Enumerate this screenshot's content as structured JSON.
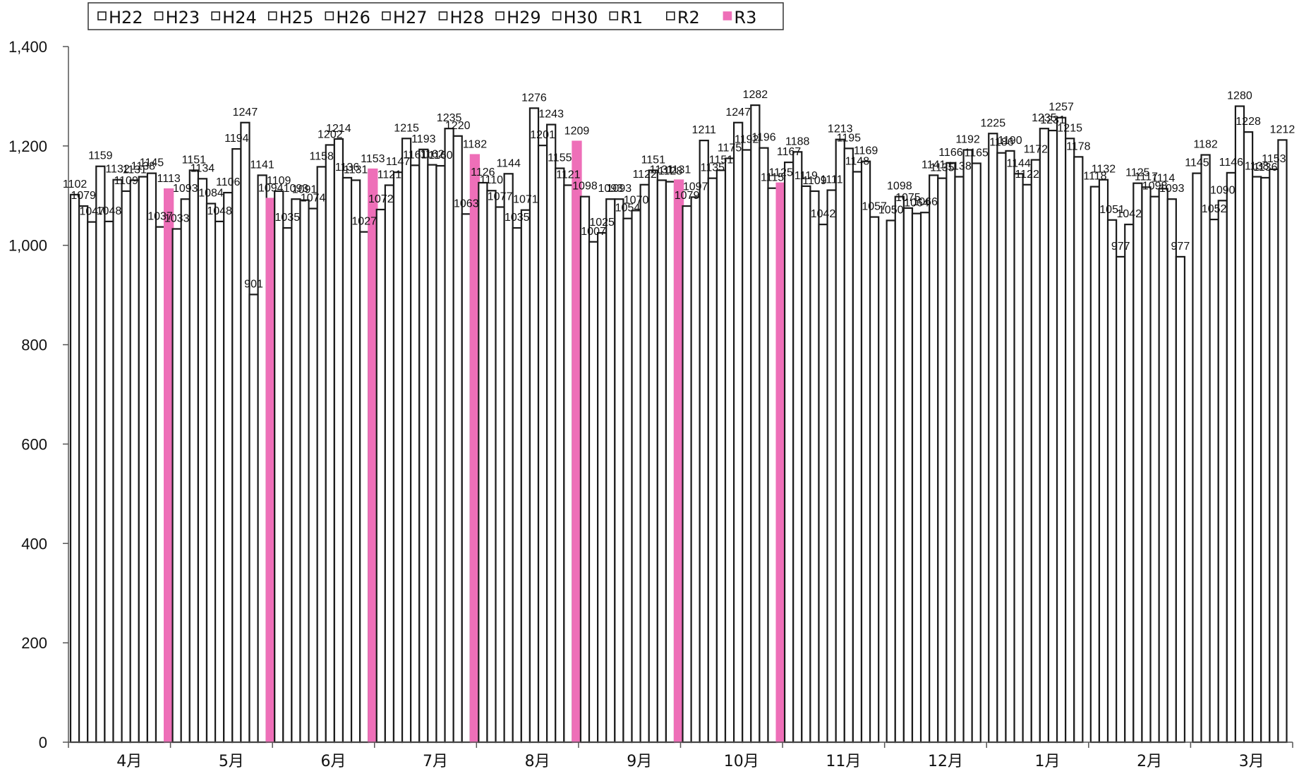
{
  "chart_data": {
    "type": "bar",
    "categories": [
      "4月",
      "5月",
      "6月",
      "7月",
      "8月",
      "9月",
      "10月",
      "11月",
      "12月",
      "1月",
      "2月",
      "3月"
    ],
    "series": [
      {
        "name": "H22",
        "values": [
          1102,
          1033,
          1109,
          1072,
          1126,
          1098,
          1079,
          1167,
          1050,
          1225,
          1118,
          1145
        ]
      },
      {
        "name": "H23",
        "values": [
          1079,
          1093,
          1035,
          1121,
          1110,
          1007,
          1097,
          1188,
          1098,
          1186,
          1132,
          1182
        ]
      },
      {
        "name": "H24",
        "values": [
          1047,
          1151,
          1093,
          1147,
          1077,
          1025,
          1211,
          1119,
          1075,
          1190,
          1051,
          1052
        ]
      },
      {
        "name": "H25",
        "values": [
          1159,
          1134,
          1091,
          1215,
          1144,
          1093,
          1135,
          1109,
          1064,
          1144,
          977,
          1090
        ]
      },
      {
        "name": "H26",
        "values": [
          1048,
          1084,
          1074,
          1161,
          1035,
          1093,
          1151,
          1042,
          1066,
          1122,
          1042,
          1146
        ]
      },
      {
        "name": "H27",
        "values": [
          1132,
          1048,
          1158,
          1193,
          1071,
          1054,
          1175,
          1111,
          1141,
          1172,
          1125,
          1280
        ]
      },
      {
        "name": "H28",
        "values": [
          1109,
          1106,
          1202,
          1162,
          1276,
          1070,
          1247,
          1213,
          1135,
          1235,
          1117,
          1228
        ]
      },
      {
        "name": "H29",
        "values": [
          1131,
          1194,
          1214,
          1160,
          1201,
          1122,
          1192,
          1195,
          1166,
          1231,
          1098,
          1138
        ]
      },
      {
        "name": "H30",
        "values": [
          1138,
          1247,
          1136,
          1235,
          1243,
          1151,
          1282,
          1148,
          1138,
          1257,
          1114,
          1136
        ]
      },
      {
        "name": "R1",
        "values": [
          1145,
          901,
          1131,
          1220,
          1155,
          1131,
          1196,
          1169,
          1192,
          1215,
          1093,
          1153
        ]
      },
      {
        "name": "R2",
        "values": [
          1037,
          1141,
          1027,
          1063,
          1121,
          1128,
          1115,
          1057,
          1165,
          1178,
          977,
          1212
        ]
      },
      {
        "name": "R3",
        "values": [
          1113,
          1094,
          1153,
          1182,
          1209,
          1131,
          1125,
          null,
          null,
          null,
          null,
          null
        ]
      }
    ],
    "ylim": [
      0,
      1400
    ],
    "yticks": [
      "0",
      "200",
      "400",
      "600",
      "800",
      "1,000",
      "1,200",
      "1,400"
    ],
    "colors": {
      "past": "#ffffff",
      "current": "#ee6fb8",
      "outline": "#1a1a1a"
    },
    "legend_position": "top-left",
    "grid": false
  }
}
